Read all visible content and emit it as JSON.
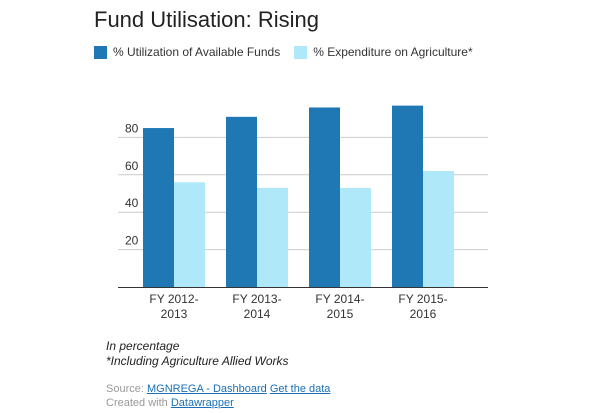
{
  "chart_data": {
    "type": "bar",
    "title": "Fund Utilisation: Rising",
    "categories": [
      [
        "FY 2012-",
        "2013"
      ],
      [
        "FY 2013-",
        "2014"
      ],
      [
        "FY 2014-",
        "2015"
      ],
      [
        "FY 2015-",
        "2016"
      ]
    ],
    "series": [
      {
        "name": "% Utilization of Available Funds",
        "color": "#1f77b4",
        "values": [
          85,
          91,
          96,
          97
        ]
      },
      {
        "name": "% Expenditure on Agriculture*",
        "color": "#aee8f9",
        "values": [
          56,
          53,
          53,
          62
        ]
      }
    ],
    "yticks": [
      20,
      40,
      60,
      80
    ],
    "ylim": [
      0,
      100
    ],
    "grid": true,
    "legend_position": "top-left"
  },
  "notes": {
    "line1": "In percentage",
    "line2": "*Including Agriculture Allied Works"
  },
  "footer": {
    "source_prefix": "Source:",
    "source_link": "MGNREGA - Dashboard",
    "get_data_link": "Get the data",
    "created_prefix": "Created with",
    "created_link": "Datawrapper"
  }
}
